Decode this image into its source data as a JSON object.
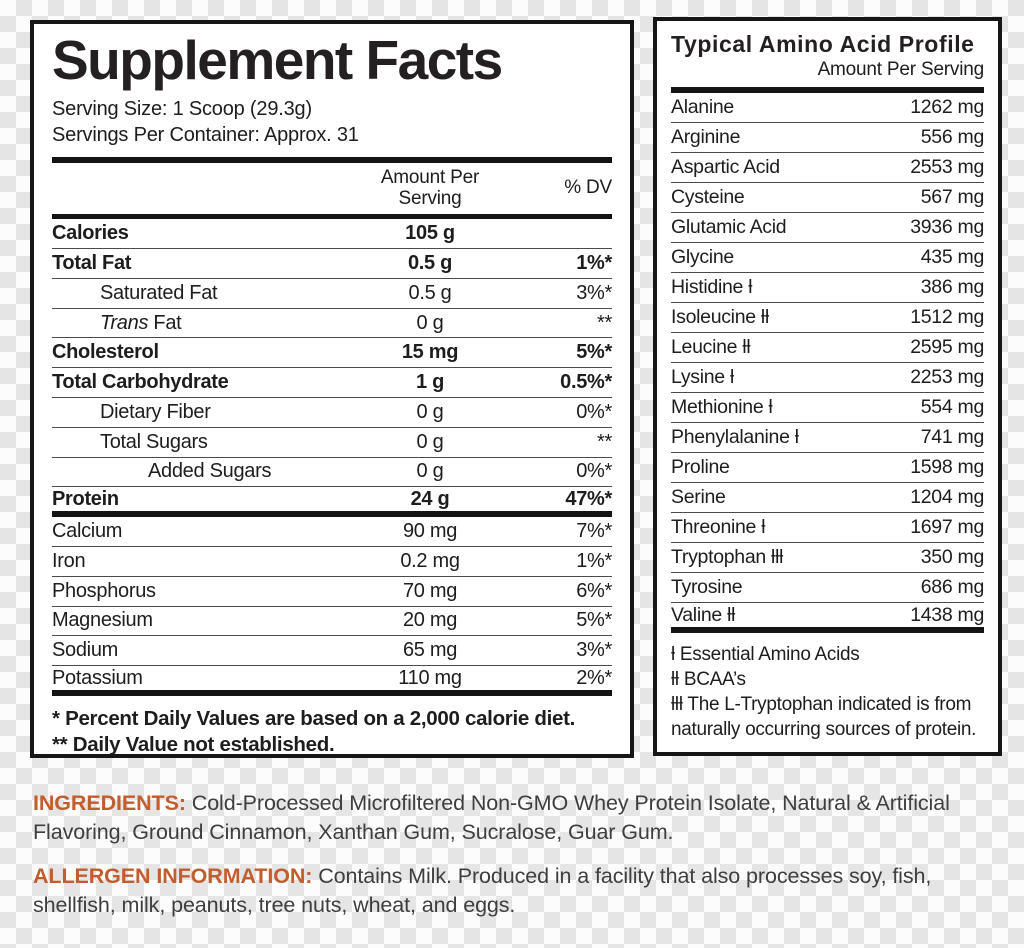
{
  "colors": {
    "accent_orange": "#c25d2e",
    "panel_border": "#161616",
    "body_text": "#3e3e3e"
  },
  "supplement_facts": {
    "title": "Supplement Facts",
    "serving_size": "Serving Size: 1 Scoop (29.3g)",
    "servings_per_container": "Servings Per Container: Approx. 31",
    "amount_header": "Amount Per\nServing",
    "dv_header": "% DV",
    "rows": [
      {
        "label": "Calories",
        "bold": true,
        "indent": 0,
        "amount": "105 g",
        "dv": "",
        "thick": false
      },
      {
        "label": "Total Fat",
        "bold": true,
        "indent": 0,
        "amount": "0.5 g",
        "dv": "1%*",
        "thick": false
      },
      {
        "label": "Saturated Fat",
        "bold": false,
        "indent": 1,
        "amount": "0.5 g",
        "dv": "3%*",
        "thick": false
      },
      {
        "label_italic": "Trans",
        "label": " Fat",
        "bold": false,
        "indent": 1,
        "amount": "0 g",
        "dv": "**",
        "thick": false
      },
      {
        "label": "Cholesterol",
        "bold": true,
        "indent": 0,
        "amount": "15 mg",
        "dv": "5%*",
        "thick": false
      },
      {
        "label": "Total Carbohydrate",
        "bold": true,
        "indent": 0,
        "amount": "1 g",
        "dv": "0.5%*",
        "thick": false
      },
      {
        "label": "Dietary Fiber",
        "bold": false,
        "indent": 1,
        "amount": "0 g",
        "dv": "0%*",
        "thick": false
      },
      {
        "label": "Total Sugars",
        "bold": false,
        "indent": 1,
        "amount": "0 g",
        "dv": "**",
        "thick": false
      },
      {
        "label": "Added Sugars",
        "bold": false,
        "indent": 2,
        "amount": "0 g",
        "dv": "0%*",
        "thick": false
      },
      {
        "label": "Protein",
        "bold": true,
        "indent": 0,
        "amount": "24 g",
        "dv": "47%*",
        "thick": true
      },
      {
        "label": "Calcium",
        "bold": false,
        "indent": 0,
        "amount": "90 mg",
        "dv": "7%*",
        "thick": false
      },
      {
        "label": "Iron",
        "bold": false,
        "indent": 0,
        "amount": "0.2 mg",
        "dv": "1%*",
        "thick": false
      },
      {
        "label": "Phosphorus",
        "bold": false,
        "indent": 0,
        "amount": "70 mg",
        "dv": "6%*",
        "thick": false
      },
      {
        "label": "Magnesium",
        "bold": false,
        "indent": 0,
        "amount": "20 mg",
        "dv": "5%*",
        "thick": false
      },
      {
        "label": "Sodium",
        "bold": false,
        "indent": 0,
        "amount": "65 mg",
        "dv": "3%*",
        "thick": false
      },
      {
        "label": "Potassium",
        "bold": false,
        "indent": 0,
        "amount": "110 mg",
        "dv": "2%*",
        "thick": true
      }
    ],
    "footnotes": [
      "* Percent Daily Values are based on a 2,000 calorie diet.",
      "** Daily Value not established."
    ]
  },
  "amino_profile": {
    "title": "Typical Amino Acid Profile",
    "subtitle": "Amount Per Serving",
    "rows": [
      {
        "name": "Alanine",
        "amount": "1262 mg"
      },
      {
        "name": "Arginine",
        "amount": "556 mg"
      },
      {
        "name": "Aspartic Acid",
        "amount": "2553 mg"
      },
      {
        "name": "Cysteine",
        "amount": "567 mg"
      },
      {
        "name": "Glutamic Acid",
        "amount": "3936 mg"
      },
      {
        "name": "Glycine",
        "amount": "435 mg"
      },
      {
        "name": "Histidine ƚ",
        "amount": "386 mg"
      },
      {
        "name": "Isoleucine ƚƚ",
        "amount": "1512 mg"
      },
      {
        "name": "Leucine ƚƚ",
        "amount": "2595 mg"
      },
      {
        "name": "Lysine ƚ",
        "amount": "2253 mg"
      },
      {
        "name": "Methionine ƚ",
        "amount": "554 mg"
      },
      {
        "name": "Phenylalanine ƚ",
        "amount": "741 mg"
      },
      {
        "name": "Proline",
        "amount": "1598 mg"
      },
      {
        "name": "Serine",
        "amount": "1204 mg"
      },
      {
        "name": "Threonine ƚ",
        "amount": "1697 mg"
      },
      {
        "name": "Tryptophan ƚƚƚ",
        "amount": "350 mg"
      },
      {
        "name": "Tyrosine",
        "amount": "686 mg"
      },
      {
        "name": "Valine ƚƚ",
        "amount": "1438 mg"
      }
    ],
    "footnotes": [
      "ƚ Essential Amino Acids",
      "ƚƚ BCAA’s",
      "ƚƚƚ The L-Tryptophan indicated is from naturally occurring sources of protein."
    ]
  },
  "ingredients": {
    "label": "INGREDIENTS:",
    "text": " Cold-Processed Microfiltered Non-GMO Whey Protein Isolate, Natural & Artificial Flavoring, Ground Cinnamon, Xanthan Gum, Sucralose, Guar Gum."
  },
  "allergen": {
    "label": "ALLERGEN INFORMATION:",
    "text": " Contains Milk. Produced in a facility that also processes soy, fish, shellfish, milk, peanuts, tree nuts, wheat, and eggs."
  }
}
